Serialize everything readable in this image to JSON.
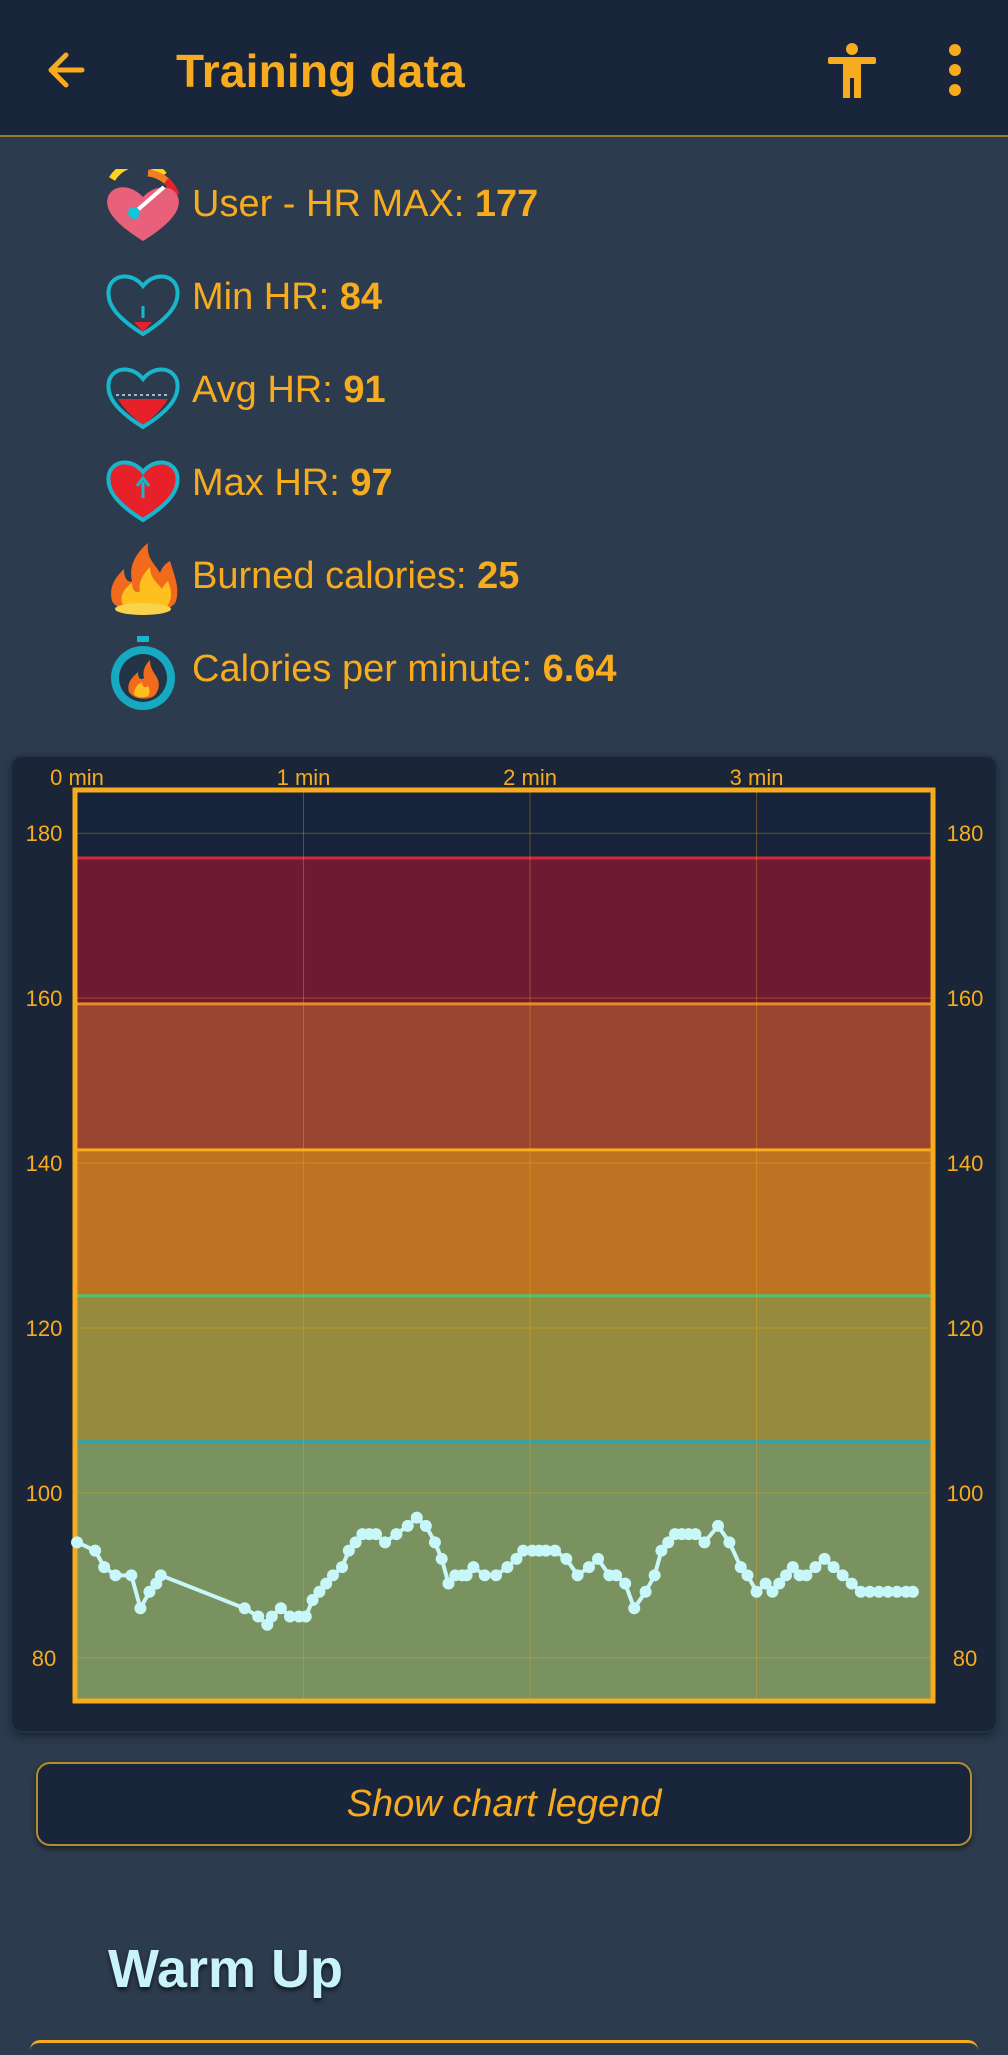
{
  "appbar": {
    "title": "Training data",
    "back_icon": "arrow-left-icon",
    "accessibility_icon": "accessibility-icon",
    "menu_icon": "more-vert-icon"
  },
  "stats": [
    {
      "label": "User - HR MAX: ",
      "value": "177",
      "icon": "hr-max-gauge-heart-icon"
    },
    {
      "label": "Min HR: ",
      "value": "84",
      "icon": "min-hr-heart-icon"
    },
    {
      "label": "Avg HR: ",
      "value": "91",
      "icon": "avg-hr-heart-icon"
    },
    {
      "label": "Max HR: ",
      "value": "97",
      "icon": "max-hr-heart-icon"
    },
    {
      "label": "Burned calories: ",
      "value": "25",
      "icon": "flame-icon"
    },
    {
      "label": "Calories per minute: ",
      "value": "6.64",
      "icon": "stopwatch-flame-icon"
    }
  ],
  "chart_data": {
    "type": "line",
    "x_unit": "min",
    "x_tick_labels": [
      "0 min",
      "1 min",
      "2 min",
      "3 min"
    ],
    "x_ticks": [
      0,
      1,
      2,
      3
    ],
    "xlim": [
      0,
      3.77
    ],
    "ylim": [
      75,
      185
    ],
    "y_ticks": [
      80,
      100,
      120,
      140,
      160,
      180
    ],
    "y_tick_labels": [
      "80",
      "100",
      "120",
      "140",
      "160",
      "180"
    ],
    "grid": true,
    "zones": [
      {
        "from": 75,
        "to": 106.2,
        "color": "#7a9160",
        "line_color": "#2fa2ad"
      },
      {
        "from": 106.2,
        "to": 123.9,
        "color": "#968b3c",
        "line_color": "#52c26e"
      },
      {
        "from": 123.9,
        "to": 141.6,
        "color": "#bd7422",
        "line_color": "#f7ab1e"
      },
      {
        "from": 141.6,
        "to": 159.3,
        "color": "#9a4530",
        "line_color": "#e58b2a"
      },
      {
        "from": 159.3,
        "to": 177,
        "color": "#6e1a33",
        "line_color": "#d42a38"
      }
    ],
    "series": [
      {
        "color": "#c8f7fa",
        "x": [
          0,
          0.08,
          0.12,
          0.17,
          0.24,
          0.28,
          0.32,
          0.35,
          0.37,
          0.74,
          0.8,
          0.84,
          0.86,
          0.9,
          0.94,
          0.98,
          1.01,
          1.04,
          1.07,
          1.1,
          1.13,
          1.17,
          1.2,
          1.23,
          1.26,
          1.29,
          1.32,
          1.36,
          1.41,
          1.46,
          1.5,
          1.54,
          1.58,
          1.61,
          1.64,
          1.67,
          1.7,
          1.72,
          1.75,
          1.8,
          1.85,
          1.9,
          1.94,
          1.97,
          2.01,
          2.04,
          2.07,
          2.11,
          2.16,
          2.21,
          2.26,
          2.3,
          2.35,
          2.38,
          2.42,
          2.46,
          2.51,
          2.55,
          2.58,
          2.61,
          2.64,
          2.67,
          2.7,
          2.73,
          2.77,
          2.83,
          2.88,
          2.93,
          2.96,
          3.0,
          3.04,
          3.07,
          3.1,
          3.13,
          3.16,
          3.19,
          3.22,
          3.26,
          3.3,
          3.34,
          3.38,
          3.42,
          3.46,
          3.5,
          3.54,
          3.58,
          3.62,
          3.66,
          3.69
        ],
        "y": [
          94,
          93,
          91,
          90,
          90,
          86,
          88,
          89,
          90,
          86,
          85,
          84,
          85,
          86,
          85,
          85,
          85,
          87,
          88,
          89,
          90,
          91,
          93,
          94,
          95,
          95,
          95,
          94,
          95,
          96,
          97,
          96,
          94,
          92,
          89,
          90,
          90,
          90,
          91,
          90,
          90,
          91,
          92,
          93,
          93,
          93,
          93,
          93,
          92,
          90,
          91,
          92,
          90,
          90,
          89,
          86,
          88,
          90,
          93,
          94,
          95,
          95,
          95,
          95,
          94,
          96,
          94,
          91,
          90,
          88,
          89,
          88,
          89,
          90,
          91,
          90,
          90,
          91,
          92,
          91,
          90,
          89,
          88,
          88,
          88,
          88,
          88,
          88,
          88
        ]
      }
    ]
  },
  "legend_button": {
    "label": "Show chart legend"
  },
  "section": {
    "title": "Warm Up"
  }
}
